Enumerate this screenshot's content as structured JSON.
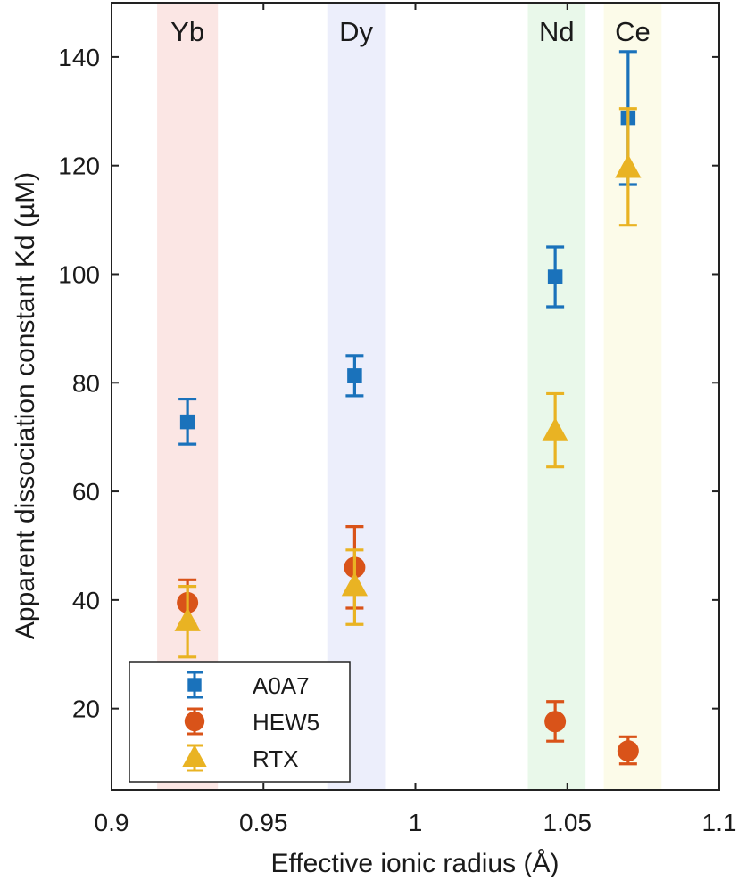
{
  "chart_data": {
    "type": "scatter",
    "xlabel": "Effective ionic radius (Å)",
    "ylabel": "Apparent dissociation constant Kd (µM)",
    "xlim": [
      0.9,
      1.1
    ],
    "ylim": [
      5,
      150
    ],
    "xticks": [
      0.9,
      0.95,
      1.0,
      1.05,
      1.1
    ],
    "xtick_labels": [
      "0.9",
      "0.95",
      "1",
      "1.05",
      "1.1"
    ],
    "yticks": [
      20,
      40,
      60,
      80,
      100,
      120,
      140
    ],
    "ytick_labels": [
      "20",
      "40",
      "60",
      "80",
      "100",
      "120",
      "140"
    ],
    "grid": false,
    "legend_position": "bottom-left",
    "bands": [
      {
        "label": "Yb",
        "x_from": 0.915,
        "x_to": 0.935,
        "color": "#fbe6e4"
      },
      {
        "label": "Dy",
        "x_from": 0.971,
        "x_to": 0.99,
        "color": "#eceefb"
      },
      {
        "label": "Nd",
        "x_from": 1.037,
        "x_to": 1.056,
        "color": "#e9f8ea"
      },
      {
        "label": "Ce",
        "x_from": 1.062,
        "x_to": 1.081,
        "color": "#fcfbe9"
      }
    ],
    "series": [
      {
        "name": "A0A7",
        "marker": "square",
        "color": "#1a72bb",
        "points": [
          {
            "x": 0.925,
            "y": 72.8,
            "lo": 68.7,
            "hi": 77.0
          },
          {
            "x": 0.98,
            "y": 81.3,
            "lo": 77.6,
            "hi": 85.0
          },
          {
            "x": 1.046,
            "y": 99.5,
            "lo": 94.0,
            "hi": 105.0
          },
          {
            "x": 1.07,
            "y": 128.8,
            "lo": 116.5,
            "hi": 141.0
          }
        ]
      },
      {
        "name": "HEW5",
        "marker": "circle",
        "color": "#d95319",
        "points": [
          {
            "x": 0.925,
            "y": 39.5,
            "lo": 35.5,
            "hi": 43.7
          },
          {
            "x": 0.98,
            "y": 46.0,
            "lo": 38.5,
            "hi": 53.5
          },
          {
            "x": 1.046,
            "y": 17.6,
            "lo": 14.0,
            "hi": 21.3
          },
          {
            "x": 1.07,
            "y": 12.2,
            "lo": 9.8,
            "hi": 14.8
          }
        ]
      },
      {
        "name": "RTX",
        "marker": "triangle",
        "color": "#e9b323",
        "points": [
          {
            "x": 0.925,
            "y": 36.0,
            "lo": 29.5,
            "hi": 42.5
          },
          {
            "x": 0.98,
            "y": 42.5,
            "lo": 35.5,
            "hi": 49.2
          },
          {
            "x": 1.046,
            "y": 71.0,
            "lo": 64.5,
            "hi": 78.0
          },
          {
            "x": 1.07,
            "y": 119.5,
            "lo": 109.0,
            "hi": 130.5
          }
        ]
      }
    ]
  }
}
